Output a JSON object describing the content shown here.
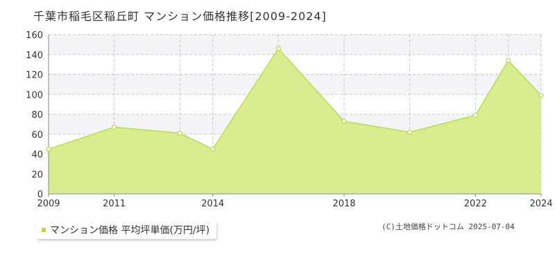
{
  "title": "千葉市稲毛区稲丘町 マンション価格推移[2009-2024]",
  "legend": {
    "label": "マンション価格 平均坪単価(万円/坪)"
  },
  "copyright": "(C)土地価格ドットコム 2025-07-04",
  "colors": {
    "area_fill": "#d9ec8f",
    "line": "#b8dc55",
    "marker_stroke": "#b5d74a",
    "marker_fill": "#ffffff",
    "band": "#f4f3f6",
    "grid": "#c8c8c8",
    "axis": "#888888"
  },
  "chart_data": {
    "type": "area",
    "title": "",
    "xlabel": "",
    "ylabel": "",
    "x": [
      2009,
      2011,
      2013,
      2014,
      2016,
      2018,
      2020,
      2022,
      2023,
      2024
    ],
    "xlim": [
      2009,
      2024
    ],
    "xtick_values": [
      2009,
      2011,
      2014,
      2018,
      2022,
      2024
    ],
    "xtick_labels": [
      "2009",
      "2011",
      "2014",
      "2018",
      "2022",
      "2024"
    ],
    "ylim": [
      0,
      160
    ],
    "yticks": [
      0,
      20,
      40,
      60,
      80,
      100,
      120,
      140,
      160
    ],
    "grid": true,
    "legend_position": "bottom-left",
    "series": [
      {
        "name": "マンション価格 平均坪単価(万円/坪)",
        "values": [
          45,
          67,
          61,
          45,
          146,
          73,
          62,
          79,
          134,
          99
        ]
      }
    ]
  }
}
